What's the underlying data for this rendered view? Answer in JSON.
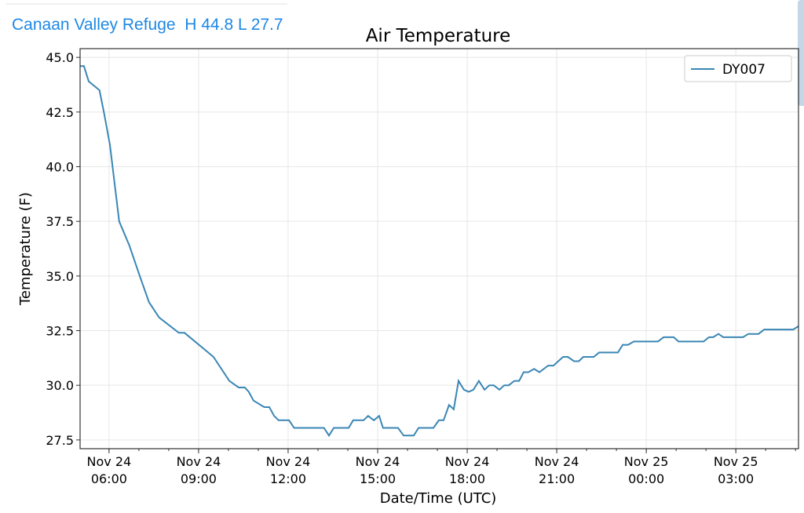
{
  "header": {
    "station_label": "Canaan Valley Refuge  H 44.8 L 27.7"
  },
  "chart_data": {
    "type": "line",
    "title": "Air Temperature",
    "xlabel": "Date/Time (UTC)",
    "ylabel": "Temperature (F)",
    "x_units": "hours since Nov 24 00:00 UTC",
    "xlim": [
      5.03,
      29.1
    ],
    "ylim": [
      27.1,
      45.4
    ],
    "grid": true,
    "legend": {
      "position": "top-right",
      "entries": [
        "DY007"
      ]
    },
    "yticks": [
      27.5,
      30.0,
      32.5,
      35.0,
      37.5,
      40.0,
      42.5,
      45.0
    ],
    "ytick_labels": [
      "27.5",
      "30.0",
      "32.5",
      "35.0",
      "37.5",
      "40.0",
      "42.5",
      "45.0"
    ],
    "xticks": [
      6,
      9,
      12,
      15,
      18,
      21,
      24,
      27
    ],
    "xtick_labels": [
      [
        "Nov 24",
        "06:00"
      ],
      [
        "Nov 24",
        "09:00"
      ],
      [
        "Nov 24",
        "12:00"
      ],
      [
        "Nov 24",
        "15:00"
      ],
      [
        "Nov 24",
        "18:00"
      ],
      [
        "Nov 24",
        "21:00"
      ],
      [
        "Nov 25",
        "00:00"
      ],
      [
        "Nov 25",
        "03:00"
      ]
    ],
    "series": [
      {
        "name": "DY007",
        "color": "#3a86b4",
        "x": [
          5.03,
          5.16,
          5.32,
          5.68,
          5.84,
          6.03,
          6.34,
          6.68,
          7.03,
          7.34,
          7.68,
          8.34,
          8.53,
          9.5,
          10.03,
          10.34,
          10.55,
          10.68,
          10.84,
          11.2,
          11.37,
          11.53,
          11.68,
          12.03,
          12.2,
          13.2,
          13.37,
          13.53,
          14.03,
          14.18,
          14.53,
          14.68,
          14.87,
          15.05,
          15.18,
          15.68,
          15.87,
          16.21,
          16.37,
          16.87,
          17.05,
          17.21,
          17.39,
          17.55,
          17.71,
          17.89,
          18.05,
          18.21,
          18.39,
          18.58,
          18.74,
          18.89,
          19.08,
          19.24,
          19.39,
          19.58,
          19.74,
          19.89,
          20.05,
          20.24,
          20.42,
          20.71,
          20.89,
          21.21,
          21.37,
          21.58,
          21.74,
          21.89,
          22.24,
          22.42,
          23.05,
          23.21,
          23.39,
          23.58,
          24.39,
          24.58,
          24.92,
          25.08,
          25.92,
          26.1,
          26.24,
          26.42,
          26.58,
          27.24,
          27.42,
          27.76,
          27.95,
          28.92,
          29.1
        ],
        "y": [
          44.6,
          44.6,
          43.9,
          43.5,
          42.4,
          41.0,
          37.5,
          36.4,
          35.0,
          33.8,
          33.1,
          32.4,
          32.4,
          31.3,
          30.2,
          29.9,
          29.9,
          29.7,
          29.3,
          29.0,
          29.0,
          28.6,
          28.4,
          28.4,
          28.05,
          28.05,
          27.7,
          28.05,
          28.05,
          28.4,
          28.4,
          28.6,
          28.4,
          28.6,
          28.05,
          28.05,
          27.7,
          27.7,
          28.05,
          28.05,
          28.4,
          28.4,
          29.1,
          28.9,
          30.2,
          29.8,
          29.7,
          29.8,
          30.2,
          29.8,
          30.0,
          30.0,
          29.8,
          30.0,
          30.0,
          30.2,
          30.2,
          30.6,
          30.6,
          30.75,
          30.6,
          30.9,
          30.9,
          31.3,
          31.3,
          31.1,
          31.1,
          31.3,
          31.3,
          31.5,
          31.5,
          31.85,
          31.85,
          32.0,
          32.0,
          32.2,
          32.2,
          32.0,
          32.0,
          32.2,
          32.2,
          32.35,
          32.2,
          32.2,
          32.35,
          32.35,
          32.55,
          32.55,
          32.7
        ]
      }
    ]
  }
}
